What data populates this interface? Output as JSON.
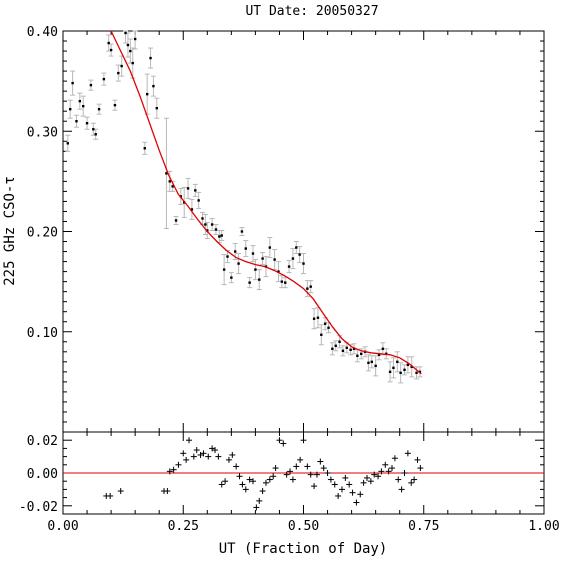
{
  "title": "UT Date: 20050327",
  "chart_data": [
    {
      "panel": "main",
      "type": "scatter",
      "xlabel": "UT (Fraction of Day)",
      "ylabel": "225 GHz CSO-τ",
      "xlim": [
        0.0,
        1.0
      ],
      "ylim": [
        0.0,
        0.4
      ],
      "yticks": [
        "0.10",
        "0.20",
        "0.30",
        "0.40"
      ],
      "grid": false,
      "points": [
        [
          0.01,
          0.288,
          0.008
        ],
        [
          0.015,
          0.322,
          0.009
        ],
        [
          0.02,
          0.348,
          0.012
        ],
        [
          0.028,
          0.31,
          0.006
        ],
        [
          0.035,
          0.33,
          0.008
        ],
        [
          0.042,
          0.325,
          0.01
        ],
        [
          0.05,
          0.308,
          0.006
        ],
        [
          0.058,
          0.346,
          0.005
        ],
        [
          0.063,
          0.302,
          0.006
        ],
        [
          0.068,
          0.297,
          0.005
        ],
        [
          0.075,
          0.322,
          0.005
        ],
        [
          0.085,
          0.352,
          0.006
        ],
        [
          0.095,
          0.388,
          0.008
        ],
        [
          0.1,
          0.381,
          0.006
        ],
        [
          0.108,
          0.326,
          0.005
        ],
        [
          0.115,
          0.358,
          0.008
        ],
        [
          0.122,
          0.365,
          0.01
        ],
        [
          0.13,
          0.398,
          0.01
        ],
        [
          0.135,
          0.386,
          0.012
        ],
        [
          0.14,
          0.38,
          0.012
        ],
        [
          0.145,
          0.368,
          0.015
        ],
        [
          0.15,
          0.392,
          0.01
        ],
        [
          0.17,
          0.283,
          0.006
        ],
        [
          0.175,
          0.337,
          0.02
        ],
        [
          0.182,
          0.373,
          0.01
        ],
        [
          0.188,
          0.345,
          0.01
        ],
        [
          0.195,
          0.323,
          0.01
        ],
        [
          0.215,
          0.258,
          0.055
        ],
        [
          0.222,
          0.25,
          0.01
        ],
        [
          0.228,
          0.245,
          0.005
        ],
        [
          0.235,
          0.211,
          0.004
        ],
        [
          0.245,
          0.235,
          0.008
        ],
        [
          0.252,
          0.229,
          0.015
        ],
        [
          0.26,
          0.243,
          0.01
        ],
        [
          0.268,
          0.222,
          0.01
        ],
        [
          0.275,
          0.241,
          0.006
        ],
        [
          0.282,
          0.231,
          0.008
        ],
        [
          0.29,
          0.213,
          0.006
        ],
        [
          0.296,
          0.207,
          0.01
        ],
        [
          0.3,
          0.201,
          0.008
        ],
        [
          0.31,
          0.207,
          0.006
        ],
        [
          0.318,
          0.202,
          0.005
        ],
        [
          0.325,
          0.195,
          0.006
        ],
        [
          0.33,
          0.196,
          0.005
        ],
        [
          0.335,
          0.162,
          0.015
        ],
        [
          0.342,
          0.175,
          0.006
        ],
        [
          0.35,
          0.154,
          0.005
        ],
        [
          0.358,
          0.18,
          0.008
        ],
        [
          0.365,
          0.168,
          0.01
        ],
        [
          0.372,
          0.2,
          0.004
        ],
        [
          0.38,
          0.183,
          0.008
        ],
        [
          0.388,
          0.149,
          0.005
        ],
        [
          0.395,
          0.178,
          0.008
        ],
        [
          0.4,
          0.162,
          0.01
        ],
        [
          0.408,
          0.152,
          0.01
        ],
        [
          0.415,
          0.173,
          0.006
        ],
        [
          0.422,
          0.165,
          0.01
        ],
        [
          0.43,
          0.184,
          0.01
        ],
        [
          0.44,
          0.172,
          0.01
        ],
        [
          0.448,
          0.16,
          0.01
        ],
        [
          0.455,
          0.15,
          0.006
        ],
        [
          0.462,
          0.149,
          0.005
        ],
        [
          0.47,
          0.165,
          0.006
        ],
        [
          0.478,
          0.173,
          0.01
        ],
        [
          0.485,
          0.184,
          0.006
        ],
        [
          0.492,
          0.177,
          0.008
        ],
        [
          0.5,
          0.168,
          0.01
        ],
        [
          0.508,
          0.143,
          0.008
        ],
        [
          0.515,
          0.145,
          0.006
        ],
        [
          0.522,
          0.113,
          0.01
        ],
        [
          0.53,
          0.114,
          0.01
        ],
        [
          0.537,
          0.097,
          0.01
        ],
        [
          0.545,
          0.108,
          0.006
        ],
        [
          0.552,
          0.104,
          0.005
        ],
        [
          0.56,
          0.083,
          0.006
        ],
        [
          0.567,
          0.086,
          0.005
        ],
        [
          0.575,
          0.09,
          0.006
        ],
        [
          0.582,
          0.081,
          0.005
        ],
        [
          0.59,
          0.084,
          0.005
        ],
        [
          0.598,
          0.082,
          0.005
        ],
        [
          0.605,
          0.083,
          0.005
        ],
        [
          0.612,
          0.076,
          0.006
        ],
        [
          0.62,
          0.078,
          0.005
        ],
        [
          0.628,
          0.08,
          0.005
        ],
        [
          0.635,
          0.069,
          0.008
        ],
        [
          0.642,
          0.07,
          0.006
        ],
        [
          0.65,
          0.066,
          0.01
        ],
        [
          0.657,
          0.077,
          0.005
        ],
        [
          0.665,
          0.083,
          0.006
        ],
        [
          0.672,
          0.078,
          0.005
        ],
        [
          0.68,
          0.06,
          0.01
        ],
        [
          0.687,
          0.064,
          0.01
        ],
        [
          0.695,
          0.07,
          0.01
        ],
        [
          0.702,
          0.059,
          0.01
        ],
        [
          0.71,
          0.062,
          0.005
        ],
        [
          0.717,
          0.067,
          0.008
        ],
        [
          0.725,
          0.065,
          0.01
        ],
        [
          0.735,
          0.059,
          0.006
        ],
        [
          0.742,
          0.06,
          0.005
        ]
      ],
      "fit": [
        [
          0.1,
          0.4
        ],
        [
          0.12,
          0.38
        ],
        [
          0.14,
          0.36
        ],
        [
          0.16,
          0.335
        ],
        [
          0.18,
          0.308
        ],
        [
          0.2,
          0.281
        ],
        [
          0.22,
          0.256
        ],
        [
          0.24,
          0.237
        ],
        [
          0.26,
          0.225
        ],
        [
          0.28,
          0.212
        ],
        [
          0.3,
          0.2
        ],
        [
          0.32,
          0.19
        ],
        [
          0.34,
          0.181
        ],
        [
          0.36,
          0.174
        ],
        [
          0.38,
          0.17
        ],
        [
          0.4,
          0.167
        ],
        [
          0.42,
          0.165
        ],
        [
          0.44,
          0.161
        ],
        [
          0.46,
          0.156
        ],
        [
          0.48,
          0.15
        ],
        [
          0.5,
          0.143
        ],
        [
          0.52,
          0.133
        ],
        [
          0.54,
          0.119
        ],
        [
          0.56,
          0.105
        ],
        [
          0.58,
          0.093
        ],
        [
          0.6,
          0.085
        ],
        [
          0.62,
          0.081
        ],
        [
          0.64,
          0.079
        ],
        [
          0.66,
          0.078
        ],
        [
          0.68,
          0.077
        ],
        [
          0.7,
          0.074
        ],
        [
          0.72,
          0.068
        ],
        [
          0.74,
          0.06
        ],
        [
          0.745,
          0.058
        ]
      ],
      "errorbar_color": "#b8b8b8",
      "fit_color": "#e00000"
    },
    {
      "panel": "residuals",
      "type": "scatter",
      "xlim": [
        0.0,
        1.0
      ],
      "ylim": [
        -0.025,
        0.025
      ],
      "yticks": [
        "-0.02",
        "0.00",
        "0.02"
      ],
      "xticks": [
        "0.00",
        "0.25",
        "0.50",
        "0.75",
        "1.00"
      ],
      "zero_line_color": "#e00000",
      "points": [
        [
          0.09,
          -0.014
        ],
        [
          0.098,
          -0.014
        ],
        [
          0.12,
          -0.011
        ],
        [
          0.21,
          -0.011
        ],
        [
          0.217,
          -0.011
        ],
        [
          0.222,
          0.001
        ],
        [
          0.23,
          0.002
        ],
        [
          0.24,
          0.005
        ],
        [
          0.25,
          0.012
        ],
        [
          0.256,
          0.008
        ],
        [
          0.262,
          0.02
        ],
        [
          0.272,
          0.01
        ],
        [
          0.278,
          0.014
        ],
        [
          0.286,
          0.011
        ],
        [
          0.292,
          0.012
        ],
        [
          0.302,
          0.01
        ],
        [
          0.31,
          0.015
        ],
        [
          0.316,
          0.014
        ],
        [
          0.323,
          0.01
        ],
        [
          0.33,
          -0.007
        ],
        [
          0.337,
          -0.005
        ],
        [
          0.345,
          0.008
        ],
        [
          0.352,
          0.011
        ],
        [
          0.36,
          0.004
        ],
        [
          0.367,
          -0.002
        ],
        [
          0.373,
          -0.007
        ],
        [
          0.38,
          -0.01
        ],
        [
          0.388,
          -0.004
        ],
        [
          0.395,
          -0.005
        ],
        [
          0.402,
          -0.021
        ],
        [
          0.408,
          -0.017
        ],
        [
          0.415,
          -0.011
        ],
        [
          0.422,
          -0.006
        ],
        [
          0.43,
          -0.004
        ],
        [
          0.437,
          -0.002
        ],
        [
          0.442,
          0.003
        ],
        [
          0.45,
          0.02
        ],
        [
          0.458,
          0.018
        ],
        [
          0.465,
          -0.001
        ],
        [
          0.472,
          0.001
        ],
        [
          0.478,
          -0.004
        ],
        [
          0.485,
          0.004
        ],
        [
          0.493,
          0.008
        ],
        [
          0.5,
          0.02
        ],
        [
          0.508,
          0.004
        ],
        [
          0.515,
          -0.001
        ],
        [
          0.522,
          -0.008
        ],
        [
          0.528,
          -0.001
        ],
        [
          0.535,
          0.007
        ],
        [
          0.542,
          0.003
        ],
        [
          0.55,
          0.0
        ],
        [
          0.557,
          -0.004
        ],
        [
          0.565,
          -0.007
        ],
        [
          0.572,
          -0.014
        ],
        [
          0.58,
          -0.01
        ],
        [
          0.587,
          -0.003
        ],
        [
          0.595,
          -0.007
        ],
        [
          0.602,
          -0.012
        ],
        [
          0.61,
          -0.018
        ],
        [
          0.618,
          -0.013
        ],
        [
          0.625,
          -0.006
        ],
        [
          0.632,
          -0.003
        ],
        [
          0.64,
          -0.005
        ],
        [
          0.647,
          -0.001
        ],
        [
          0.655,
          -0.002
        ],
        [
          0.662,
          0.001
        ],
        [
          0.67,
          0.005
        ],
        [
          0.677,
          0.001
        ],
        [
          0.684,
          0.003
        ],
        [
          0.69,
          0.009
        ],
        [
          0.697,
          -0.004
        ],
        [
          0.704,
          -0.01
        ],
        [
          0.71,
          0.0
        ],
        [
          0.717,
          0.012
        ],
        [
          0.724,
          -0.006
        ],
        [
          0.73,
          -0.004
        ],
        [
          0.737,
          0.008
        ],
        [
          0.743,
          0.003
        ]
      ]
    }
  ]
}
